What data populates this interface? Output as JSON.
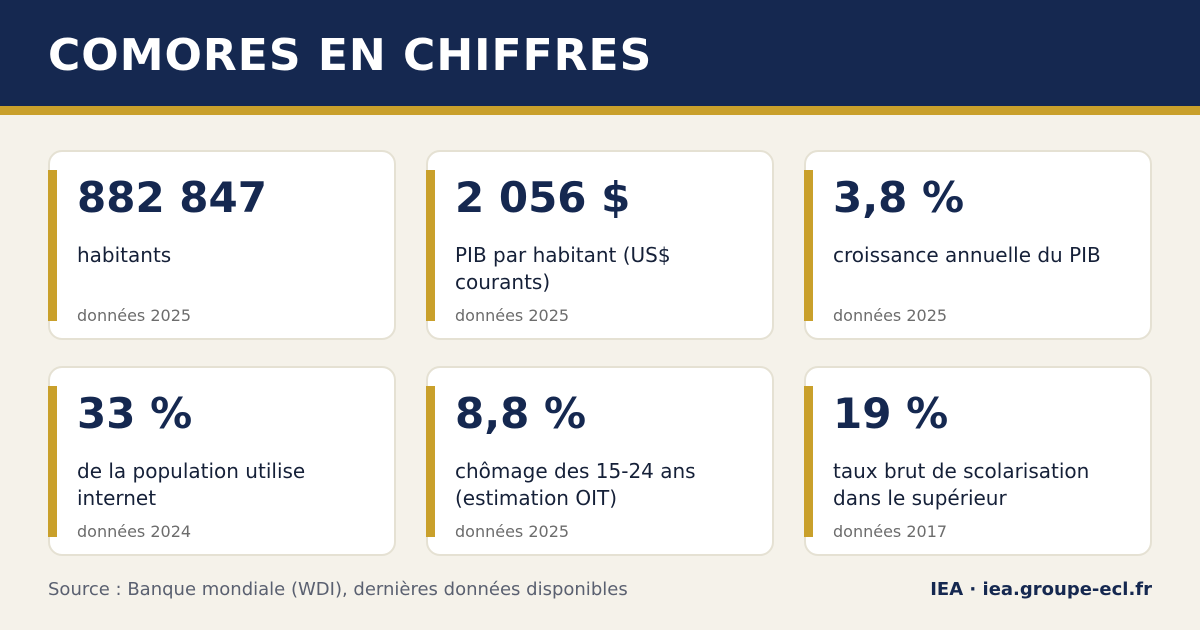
{
  "header": {
    "title": "COMORES EN CHIFFRES"
  },
  "cards": [
    {
      "value": "882 847",
      "label": "habitants",
      "year": "données 2025"
    },
    {
      "value": "2 056 $",
      "label": "PIB par habitant (US$ courants)",
      "year": "données 2025"
    },
    {
      "value": "3,8 %",
      "label": "croissance annuelle du PIB",
      "year": "données 2025"
    },
    {
      "value": "33 %",
      "label": "de la population utilise internet",
      "year": "données 2024"
    },
    {
      "value": "8,8 %",
      "label": "chômage des 15-24 ans (estimation OIT)",
      "year": "données 2025"
    },
    {
      "value": "19 %",
      "label": "taux brut de scolarisation dans le supérieur",
      "year": "données 2017"
    }
  ],
  "footer": {
    "source": "Source : Banque mondiale (WDI), dernières données disponibles",
    "brand": "IEA · iea.groupe-ecl.fr"
  },
  "colors": {
    "navy": "#152850",
    "gold": "#c9a02b",
    "background": "#f5f2ea"
  }
}
